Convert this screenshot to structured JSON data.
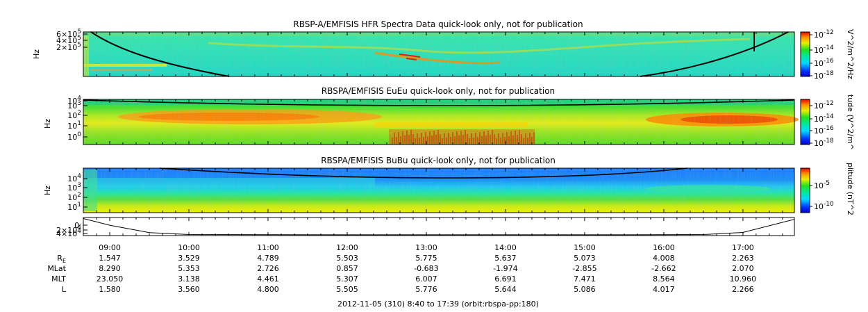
{
  "chart_data": [
    {
      "type": "heatmap",
      "title": "RBSP-A/EMFISIS  HFR Spectra Data quick-look only, not for publication",
      "ylabel": "Hz",
      "y_scale": "log",
      "yticks": [
        {
          "base": "2×10",
          "exp": "5",
          "value": 200000
        },
        {
          "base": "4×10",
          "exp": "5",
          "value": 400000
        },
        {
          "base": "6×10",
          "exp": "5",
          "value": 600000
        }
      ],
      "ylim": [
        10000,
        700000
      ],
      "colorbar": {
        "label": "V^2/m^2/Hz",
        "ticks": [
          {
            "base": "10",
            "exp": "-12"
          },
          {
            "base": "10",
            "exp": "-14"
          },
          {
            "base": "10",
            "exp": "-16"
          },
          {
            "base": "10",
            "exp": "-18"
          }
        ]
      }
    },
    {
      "type": "heatmap",
      "title": "RBSPA/EMFISIS  EuEu quick-look only, not for publication",
      "ylabel": "Hz",
      "y_scale": "log",
      "yticks": [
        {
          "base": "10",
          "exp": "0"
        },
        {
          "base": "10",
          "exp": "1"
        },
        {
          "base": "10",
          "exp": "2"
        },
        {
          "base": "10",
          "exp": "3"
        },
        {
          "base": "10",
          "exp": "4"
        }
      ],
      "ylim": [
        1,
        10000
      ],
      "colorbar": {
        "label": "tude (V^2/m^",
        "ticks": [
          {
            "base": "10",
            "exp": "-12"
          },
          {
            "base": "10",
            "exp": "-14"
          },
          {
            "base": "10",
            "exp": "-16"
          },
          {
            "base": "10",
            "exp": "-18"
          }
        ]
      }
    },
    {
      "type": "heatmap",
      "title": "RBSPA/EMFISIS  BuBu quick-look only, not for publication",
      "ylabel": "Hz",
      "y_scale": "log",
      "yticks": [
        {
          "base": "10",
          "exp": "1"
        },
        {
          "base": "10",
          "exp": "2"
        },
        {
          "base": "10",
          "exp": "3"
        },
        {
          "base": "10",
          "exp": "4"
        }
      ],
      "ylim": [
        1,
        10000
      ],
      "colorbar": {
        "label": "plitude (nT^2",
        "ticks": [
          {
            "base": "10",
            "exp": "-5"
          },
          {
            "base": "10",
            "exp": "-10"
          }
        ]
      }
    },
    {
      "type": "line",
      "title": "",
      "yticks": [
        {
          "base": "4×10",
          "exp": "4"
        },
        {
          "base": "2×10",
          "exp": "4"
        },
        {
          "base": "0",
          "exp": "."
        }
      ],
      "ylim": [
        0,
        45000
      ],
      "x": [
        "08:40",
        "09:00",
        "09:30",
        "10:00",
        "11:00",
        "12:00",
        "13:00",
        "14:00",
        "15:00",
        "16:00",
        "16:30",
        "17:00",
        "17:39"
      ],
      "values": [
        44000,
        26000,
        6000,
        900,
        300,
        200,
        200,
        200,
        250,
        500,
        900,
        6500,
        42000
      ]
    }
  ],
  "time_axis": {
    "ticks": [
      "09:00",
      "10:00",
      "11:00",
      "12:00",
      "13:00",
      "14:00",
      "15:00",
      "16:00",
      "17:00"
    ],
    "range": [
      "08:40",
      "17:39"
    ]
  },
  "ephemeris": {
    "rows": [
      {
        "label": "R",
        "sub": "E",
        "values": [
          "1.547",
          "3.529",
          "4.789",
          "5.503",
          "5.775",
          "5.637",
          "5.073",
          "4.008",
          "2.263"
        ]
      },
      {
        "label": "MLat",
        "sub": "",
        "values": [
          "8.290",
          "5.353",
          "2.726",
          "0.857",
          "-0.683",
          "-1.974",
          "-2.855",
          "-2.662",
          "2.070"
        ]
      },
      {
        "label": "MLT",
        "sub": "",
        "values": [
          "23.050",
          "3.138",
          "4.461",
          "5.307",
          "6.007",
          "6.691",
          "7.471",
          "8.564",
          "10.960"
        ]
      },
      {
        "label": "L",
        "sub": "",
        "values": [
          "1.580",
          "3.560",
          "4.800",
          "5.505",
          "5.776",
          "5.644",
          "5.086",
          "4.017",
          "2.266"
        ]
      }
    ]
  },
  "footer": "2012-11-05 (310) 8:40 to 17:39 (orbit:rbspa-pp:180)"
}
